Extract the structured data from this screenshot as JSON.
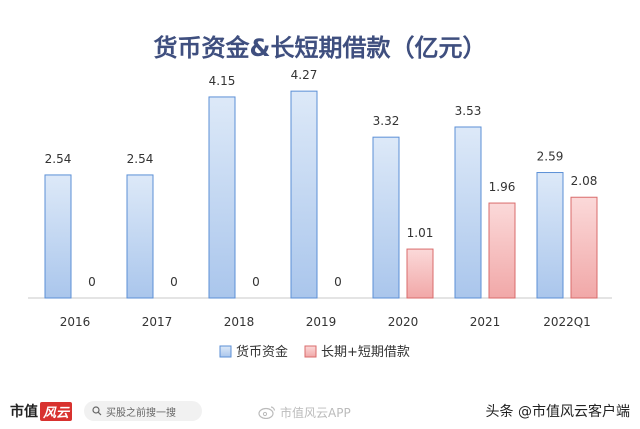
{
  "chart_data": {
    "type": "bar",
    "title": "货币资金&长短期借款（亿元）",
    "categories": [
      "2016",
      "2017",
      "2018",
      "2019",
      "2020",
      "2021",
      "2022Q1"
    ],
    "series": [
      {
        "name": "货币资金",
        "values": [
          2.54,
          2.54,
          4.15,
          4.27,
          3.32,
          3.53,
          2.59
        ],
        "color": "#bcd3f2"
      },
      {
        "name": "长期+短期借款",
        "values": [
          0,
          0,
          0,
          0,
          1.01,
          1.96,
          2.08
        ],
        "color": "#f4bcbc"
      }
    ],
    "data_labels": [
      [
        "2.54",
        "2.54",
        "4.15",
        "4.27",
        "3.32",
        "3.53",
        "2.59"
      ],
      [
        "0",
        "0",
        "0",
        "0",
        "1.01",
        "1.96",
        "2.08"
      ]
    ],
    "ylim": [
      0,
      4.5
    ],
    "grid": false,
    "legend_position": "bottom"
  },
  "footer": {
    "brand_part1": "市值",
    "brand_part2": "风云",
    "search_placeholder": "买股之前搜一搜",
    "weibo_text": "市值风云APP",
    "source_text": "头条 @市值风云客户端"
  },
  "icons": {
    "search": "search-icon",
    "weibo": "weibo-icon"
  }
}
